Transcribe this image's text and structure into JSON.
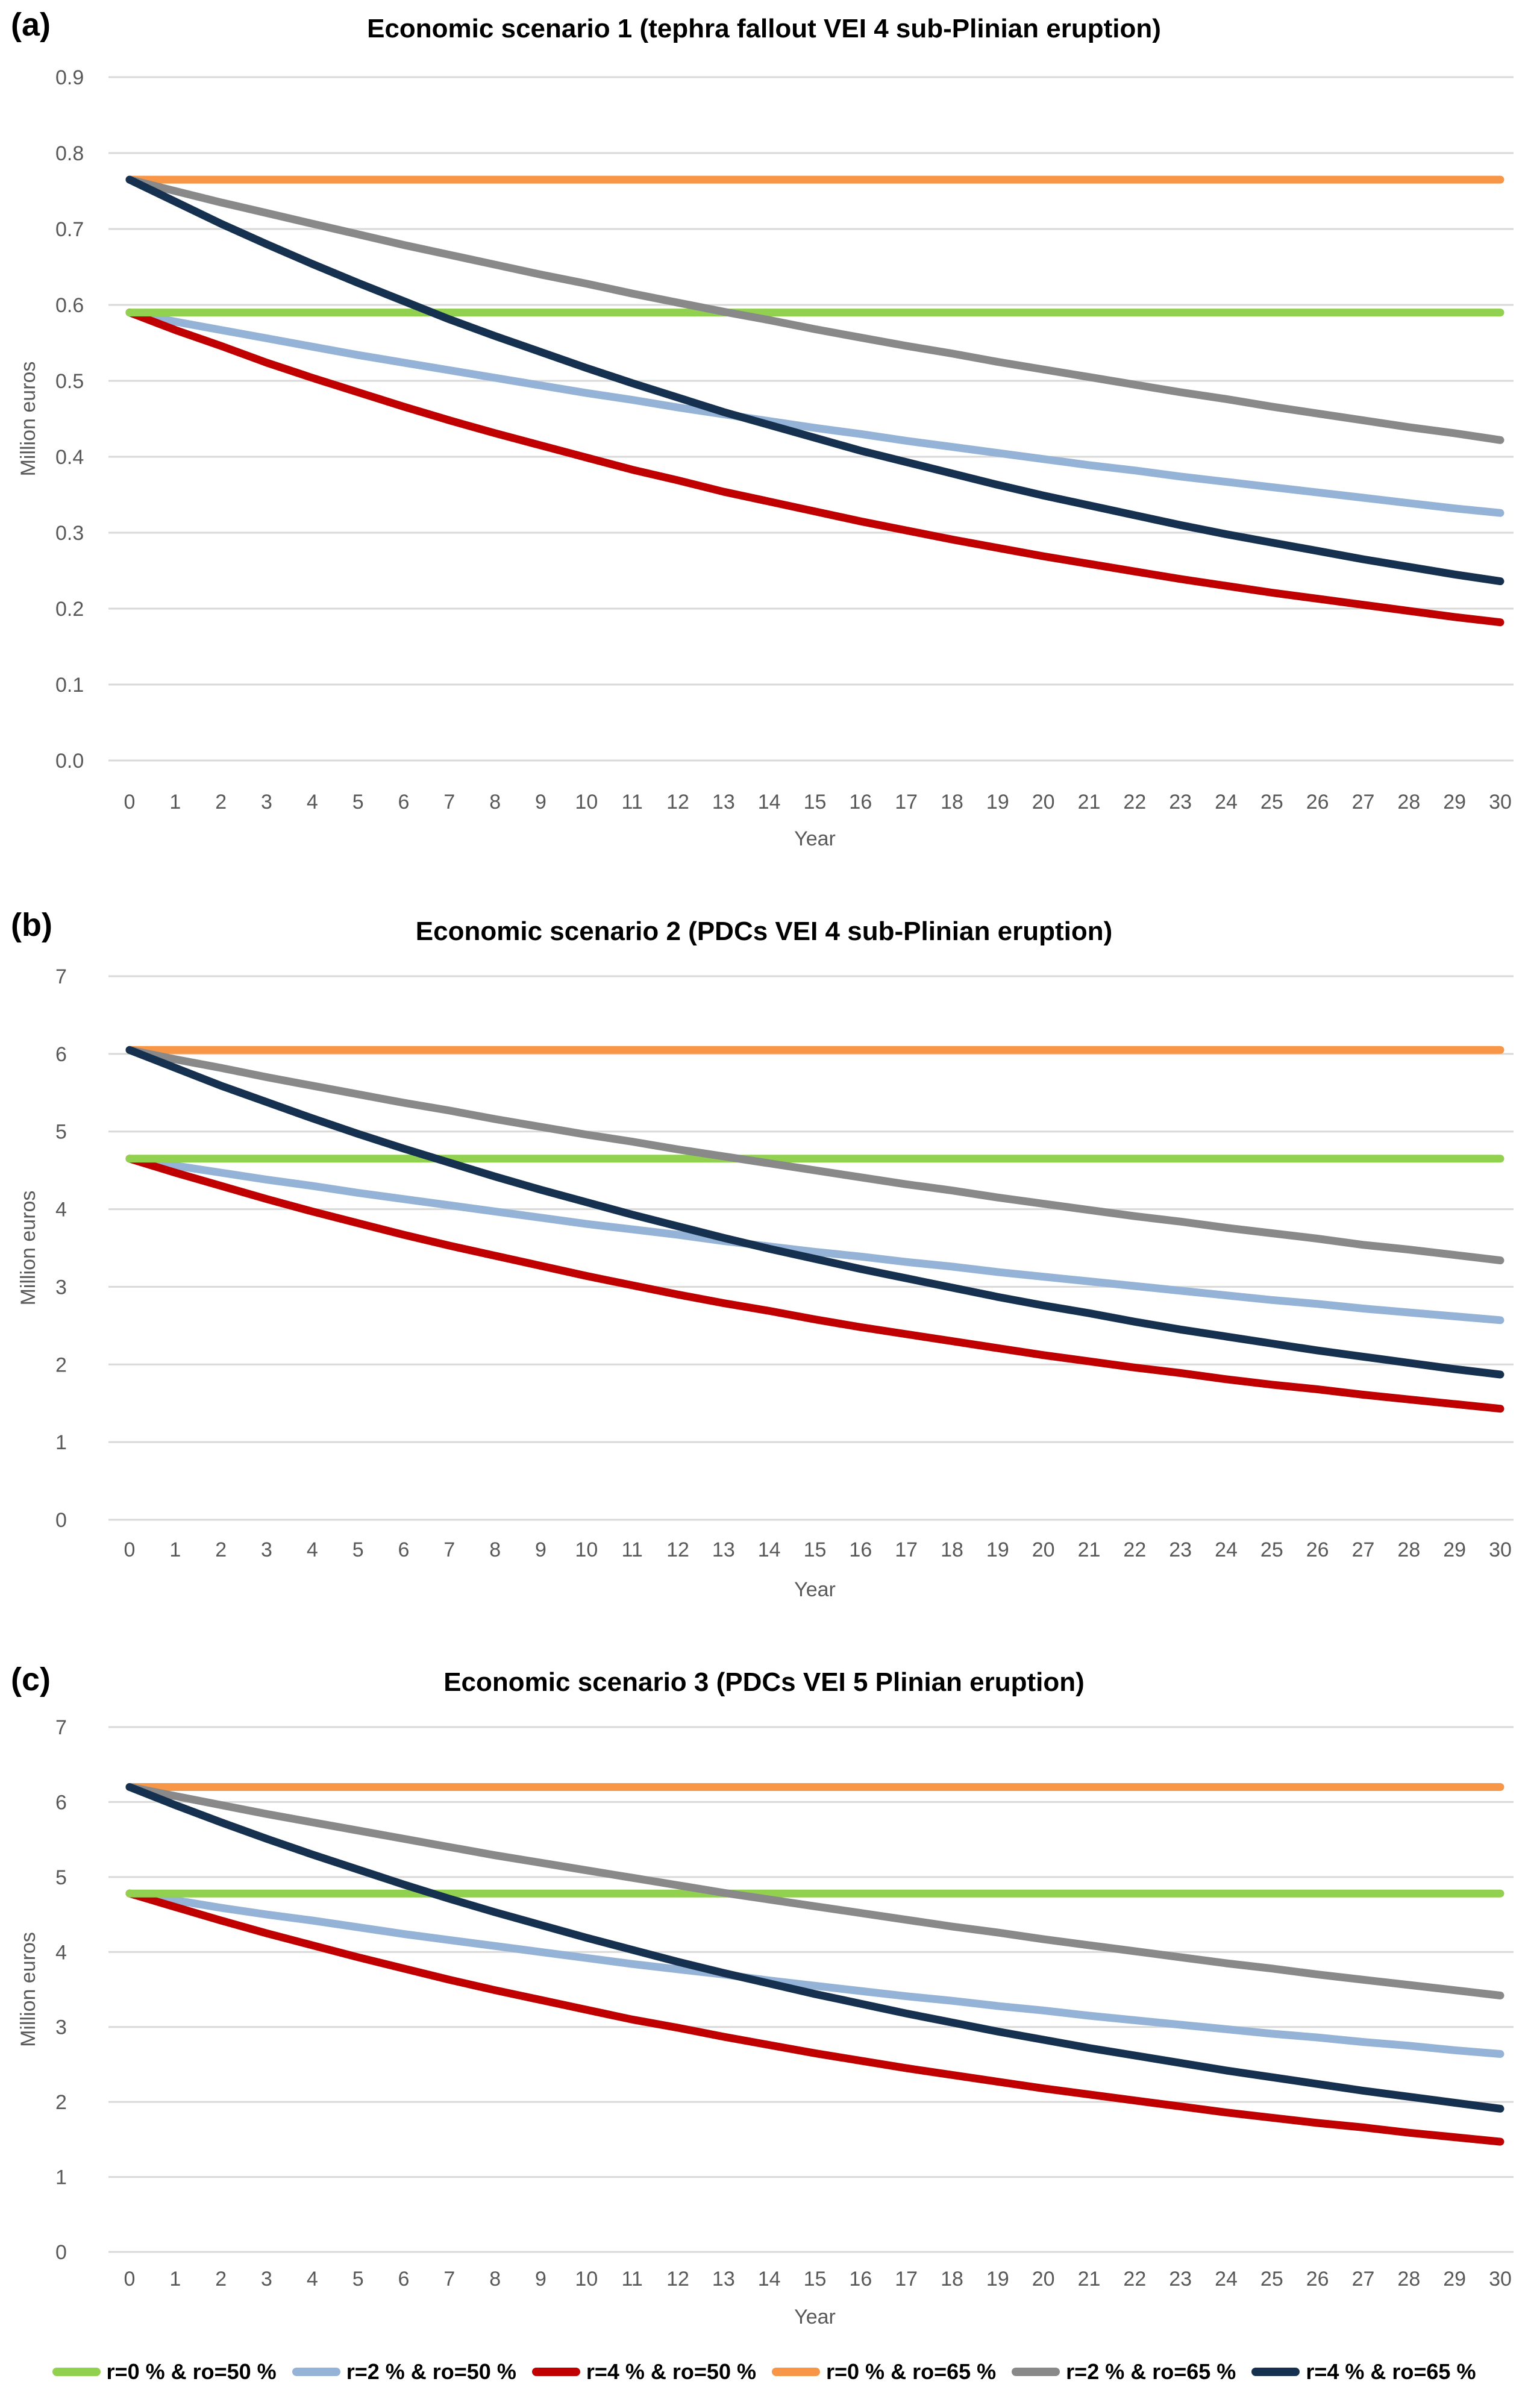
{
  "colors": {
    "green": "#92D050",
    "light_blue": "#95B3D7",
    "red": "#C00000",
    "orange": "#F79646",
    "gray": "#898989",
    "navy": "#163150",
    "gridline": "#d9d9d9",
    "axis_text": "#595959"
  },
  "legend": {
    "position": "bottom-shared",
    "items": [
      {
        "label": "r=0 % & ro=50 %",
        "color": "#92D050"
      },
      {
        "label": "r=2 % & ro=50 %",
        "color": "#95B3D7"
      },
      {
        "label": "r=4 % & ro=50 %",
        "color": "#C00000"
      },
      {
        "label": "r=0 % & ro=65 %",
        "color": "#F79646"
      },
      {
        "label": "r=2 % & ro=65 %",
        "color": "#898989"
      },
      {
        "label": "r=4 % & ro=65 %",
        "color": "#163150"
      }
    ]
  },
  "chart_data": [
    {
      "type": "line",
      "panel_label": "(a)",
      "title": "Economic scenario 1 (tephra fallout VEI 4 sub-Plinian eruption)",
      "xlabel": "Year",
      "ylabel": "Million euros",
      "grid": true,
      "x": [
        0,
        1,
        2,
        3,
        4,
        5,
        6,
        7,
        8,
        9,
        10,
        11,
        12,
        13,
        14,
        15,
        16,
        17,
        18,
        19,
        20,
        21,
        22,
        23,
        24,
        25,
        26,
        27,
        28,
        29,
        30
      ],
      "ylim": [
        0,
        0.9
      ],
      "y_ticks": [
        "0.0",
        "0.1",
        "0.2",
        "0.3",
        "0.4",
        "0.5",
        "0.6",
        "0.7",
        "0.8",
        "0.9"
      ],
      "draw_order": [
        1,
        2,
        0,
        3,
        4,
        5
      ],
      "series": [
        {
          "name": "r=0 % & ro=50 %",
          "color": "#92D050",
          "values": [
            0.59,
            0.59,
            0.59,
            0.59,
            0.59,
            0.59,
            0.59,
            0.59,
            0.59,
            0.59,
            0.59,
            0.59,
            0.59,
            0.59,
            0.59,
            0.59,
            0.59,
            0.59,
            0.59,
            0.59,
            0.59,
            0.59,
            0.59,
            0.59,
            0.59,
            0.59,
            0.59,
            0.59,
            0.59,
            0.59,
            0.59
          ]
        },
        {
          "name": "r=2 % & ro=50 %",
          "color": "#95B3D7",
          "values": [
            0.59,
            0.578,
            0.567,
            0.556,
            0.545,
            0.534,
            0.524,
            0.514,
            0.504,
            0.494,
            0.484,
            0.475,
            0.465,
            0.456,
            0.447,
            0.438,
            0.43,
            0.421,
            0.413,
            0.405,
            0.397,
            0.389,
            0.382,
            0.374,
            0.367,
            0.36,
            0.353,
            0.346,
            0.339,
            0.332,
            0.326
          ]
        },
        {
          "name": "r=4 % & ro=50 %",
          "color": "#C00000",
          "values": [
            0.59,
            0.567,
            0.546,
            0.524,
            0.504,
            0.485,
            0.466,
            0.448,
            0.431,
            0.415,
            0.399,
            0.383,
            0.369,
            0.354,
            0.341,
            0.328,
            0.315,
            0.303,
            0.291,
            0.28,
            0.269,
            0.259,
            0.249,
            0.239,
            0.23,
            0.221,
            0.213,
            0.205,
            0.197,
            0.189,
            0.182
          ]
        },
        {
          "name": "r=0 % & ro=65 %",
          "color": "#F79646",
          "values": [
            0.765,
            0.765,
            0.765,
            0.765,
            0.765,
            0.765,
            0.765,
            0.765,
            0.765,
            0.765,
            0.765,
            0.765,
            0.765,
            0.765,
            0.765,
            0.765,
            0.765,
            0.765,
            0.765,
            0.765,
            0.765,
            0.765,
            0.765,
            0.765,
            0.765,
            0.765,
            0.765,
            0.765,
            0.765,
            0.765,
            0.765
          ]
        },
        {
          "name": "r=2 % & ro=65 %",
          "color": "#898989",
          "values": [
            0.765,
            0.75,
            0.735,
            0.721,
            0.707,
            0.693,
            0.679,
            0.666,
            0.653,
            0.64,
            0.628,
            0.615,
            0.603,
            0.591,
            0.58,
            0.568,
            0.557,
            0.546,
            0.536,
            0.525,
            0.515,
            0.505,
            0.495,
            0.485,
            0.476,
            0.466,
            0.457,
            0.448,
            0.439,
            0.431,
            0.422
          ]
        },
        {
          "name": "r=4 % & ro=65 %",
          "color": "#163150",
          "values": [
            0.765,
            0.736,
            0.707,
            0.68,
            0.654,
            0.629,
            0.605,
            0.581,
            0.559,
            0.538,
            0.517,
            0.497,
            0.478,
            0.459,
            0.442,
            0.425,
            0.408,
            0.393,
            0.378,
            0.363,
            0.349,
            0.336,
            0.323,
            0.31,
            0.298,
            0.287,
            0.276,
            0.265,
            0.255,
            0.245,
            0.236
          ]
        }
      ]
    },
    {
      "type": "line",
      "panel_label": "(b)",
      "title": "Economic scenario 2 (PDCs VEI 4 sub-Plinian eruption)",
      "xlabel": "Year",
      "ylabel": "Million euros",
      "grid": true,
      "x": [
        0,
        1,
        2,
        3,
        4,
        5,
        6,
        7,
        8,
        9,
        10,
        11,
        12,
        13,
        14,
        15,
        16,
        17,
        18,
        19,
        20,
        21,
        22,
        23,
        24,
        25,
        26,
        27,
        28,
        29,
        30
      ],
      "ylim": [
        0,
        7
      ],
      "y_ticks": [
        "0",
        "1",
        "2",
        "3",
        "4",
        "5",
        "6",
        "7"
      ],
      "draw_order": [
        1,
        2,
        0,
        3,
        4,
        5
      ],
      "series": [
        {
          "name": "r=0 % & ro=50 %",
          "color": "#92D050",
          "values": [
            4.65,
            4.65,
            4.65,
            4.65,
            4.65,
            4.65,
            4.65,
            4.65,
            4.65,
            4.65,
            4.65,
            4.65,
            4.65,
            4.65,
            4.65,
            4.65,
            4.65,
            4.65,
            4.65,
            4.65,
            4.65,
            4.65,
            4.65,
            4.65,
            4.65,
            4.65,
            4.65,
            4.65,
            4.65,
            4.65,
            4.65
          ]
        },
        {
          "name": "r=2 % & ro=50 %",
          "color": "#95B3D7",
          "values": [
            4.65,
            4.56,
            4.47,
            4.38,
            4.3,
            4.21,
            4.13,
            4.05,
            3.97,
            3.89,
            3.81,
            3.74,
            3.67,
            3.59,
            3.52,
            3.45,
            3.39,
            3.32,
            3.26,
            3.19,
            3.13,
            3.07,
            3.01,
            2.95,
            2.89,
            2.83,
            2.78,
            2.72,
            2.67,
            2.62,
            2.57
          ]
        },
        {
          "name": "r=4 % & ro=50 %",
          "color": "#C00000",
          "values": [
            4.65,
            4.47,
            4.3,
            4.13,
            3.97,
            3.82,
            3.67,
            3.53,
            3.4,
            3.27,
            3.14,
            3.02,
            2.9,
            2.79,
            2.69,
            2.58,
            2.48,
            2.39,
            2.3,
            2.21,
            2.12,
            2.04,
            1.96,
            1.89,
            1.81,
            1.74,
            1.68,
            1.61,
            1.55,
            1.49,
            1.43
          ]
        },
        {
          "name": "r=0 % & ro=65 %",
          "color": "#F79646",
          "values": [
            6.05,
            6.05,
            6.05,
            6.05,
            6.05,
            6.05,
            6.05,
            6.05,
            6.05,
            6.05,
            6.05,
            6.05,
            6.05,
            6.05,
            6.05,
            6.05,
            6.05,
            6.05,
            6.05,
            6.05,
            6.05,
            6.05,
            6.05,
            6.05,
            6.05,
            6.05,
            6.05,
            6.05,
            6.05,
            6.05,
            6.05
          ]
        },
        {
          "name": "r=2 % & ro=65 %",
          "color": "#898989",
          "values": [
            6.05,
            5.93,
            5.82,
            5.7,
            5.59,
            5.48,
            5.37,
            5.27,
            5.16,
            5.06,
            4.96,
            4.87,
            4.77,
            4.68,
            4.59,
            4.5,
            4.41,
            4.32,
            4.24,
            4.15,
            4.07,
            3.99,
            3.91,
            3.84,
            3.76,
            3.69,
            3.62,
            3.54,
            3.48,
            3.41,
            3.34
          ]
        },
        {
          "name": "r=4 % & ro=65 %",
          "color": "#163150",
          "values": [
            6.05,
            5.82,
            5.59,
            5.38,
            5.17,
            4.97,
            4.78,
            4.6,
            4.42,
            4.25,
            4.09,
            3.93,
            3.78,
            3.63,
            3.49,
            3.36,
            3.23,
            3.11,
            2.99,
            2.87,
            2.76,
            2.66,
            2.55,
            2.45,
            2.36,
            2.27,
            2.18,
            2.1,
            2.02,
            1.94,
            1.87
          ]
        }
      ]
    },
    {
      "type": "line",
      "panel_label": "(c)",
      "title": "Economic scenario 3 (PDCs VEI 5 Plinian eruption)",
      "xlabel": "Year",
      "ylabel": "Million euros",
      "grid": true,
      "x": [
        0,
        1,
        2,
        3,
        4,
        5,
        6,
        7,
        8,
        9,
        10,
        11,
        12,
        13,
        14,
        15,
        16,
        17,
        18,
        19,
        20,
        21,
        22,
        23,
        24,
        25,
        26,
        27,
        28,
        29,
        30
      ],
      "ylim": [
        0,
        7
      ],
      "y_ticks": [
        "0",
        "1",
        "2",
        "3",
        "4",
        "5",
        "6",
        "7"
      ],
      "draw_order": [
        1,
        2,
        0,
        3,
        4,
        5
      ],
      "series": [
        {
          "name": "r=0 % & ro=50 %",
          "color": "#92D050",
          "values": [
            4.78,
            4.78,
            4.78,
            4.78,
            4.78,
            4.78,
            4.78,
            4.78,
            4.78,
            4.78,
            4.78,
            4.78,
            4.78,
            4.78,
            4.78,
            4.78,
            4.78,
            4.78,
            4.78,
            4.78,
            4.78,
            4.78,
            4.78,
            4.78,
            4.78,
            4.78,
            4.78,
            4.78,
            4.78,
            4.78,
            4.78
          ]
        },
        {
          "name": "r=2 % & ro=50 %",
          "color": "#95B3D7",
          "values": [
            4.78,
            4.69,
            4.59,
            4.5,
            4.42,
            4.33,
            4.24,
            4.16,
            4.08,
            4.0,
            3.92,
            3.84,
            3.77,
            3.7,
            3.62,
            3.55,
            3.48,
            3.41,
            3.35,
            3.28,
            3.22,
            3.15,
            3.09,
            3.03,
            2.97,
            2.91,
            2.86,
            2.8,
            2.75,
            2.69,
            2.64
          ]
        },
        {
          "name": "r=4 % & ro=50 %",
          "color": "#C00000",
          "values": [
            4.78,
            4.6,
            4.42,
            4.25,
            4.09,
            3.93,
            3.78,
            3.63,
            3.49,
            3.36,
            3.23,
            3.1,
            2.99,
            2.87,
            2.76,
            2.65,
            2.55,
            2.45,
            2.36,
            2.27,
            2.18,
            2.1,
            2.02,
            1.94,
            1.86,
            1.79,
            1.72,
            1.66,
            1.59,
            1.53,
            1.47
          ]
        },
        {
          "name": "r=0 % & ro=65 %",
          "color": "#F79646",
          "values": [
            6.2,
            6.2,
            6.2,
            6.2,
            6.2,
            6.2,
            6.2,
            6.2,
            6.2,
            6.2,
            6.2,
            6.2,
            6.2,
            6.2,
            6.2,
            6.2,
            6.2,
            6.2,
            6.2,
            6.2,
            6.2,
            6.2,
            6.2,
            6.2,
            6.2,
            6.2,
            6.2,
            6.2,
            6.2,
            6.2,
            6.2
          ]
        },
        {
          "name": "r=2 % & ro=65 %",
          "color": "#898989",
          "values": [
            6.2,
            6.08,
            5.96,
            5.84,
            5.73,
            5.62,
            5.51,
            5.4,
            5.29,
            5.19,
            5.09,
            4.99,
            4.89,
            4.79,
            4.7,
            4.61,
            4.52,
            4.43,
            4.34,
            4.26,
            4.17,
            4.09,
            4.01,
            3.93,
            3.85,
            3.78,
            3.7,
            3.63,
            3.56,
            3.49,
            3.42
          ]
        },
        {
          "name": "r=4 % & ro=65 %",
          "color": "#163150",
          "values": [
            6.2,
            5.96,
            5.73,
            5.51,
            5.3,
            5.1,
            4.9,
            4.71,
            4.53,
            4.36,
            4.19,
            4.03,
            3.87,
            3.72,
            3.58,
            3.44,
            3.31,
            3.18,
            3.06,
            2.94,
            2.83,
            2.72,
            2.62,
            2.52,
            2.42,
            2.33,
            2.24,
            2.15,
            2.07,
            1.99,
            1.91
          ]
        }
      ]
    }
  ]
}
